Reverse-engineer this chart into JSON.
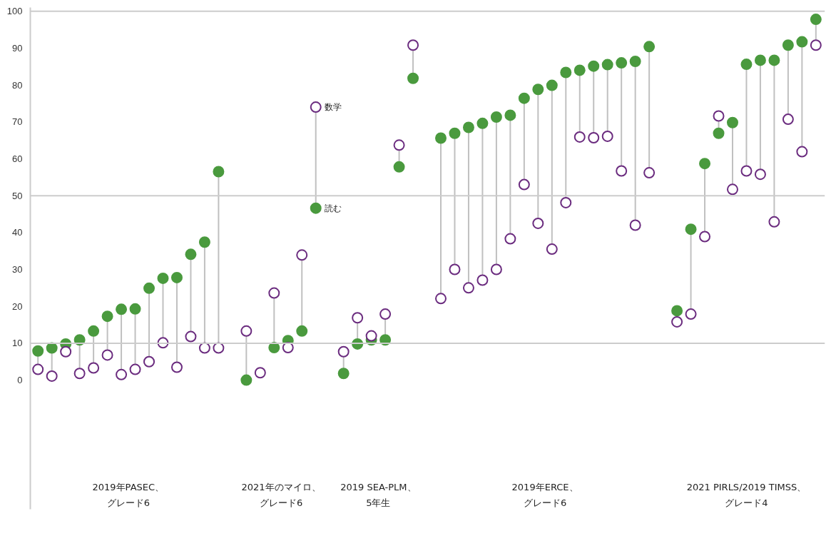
{
  "chart_data": {
    "type": "lollipop",
    "categories": [
      null,
      null,
      null,
      null,
      null,
      null,
      null,
      null,
      null,
      null,
      null,
      null,
      null,
      null,
      null,
      null,
      null,
      null,
      null,
      null,
      null,
      null,
      null,
      null,
      null,
      null,
      null,
      null,
      null,
      null,
      null,
      null,
      null,
      null,
      null,
      null,
      null,
      null,
      null,
      null,
      null,
      null,
      null,
      null,
      null,
      null,
      null,
      null,
      null,
      null,
      null,
      null,
      null,
      null,
      null,
      null,
      null
    ],
    "series": [
      {
        "name": "読む",
        "color": "#4a9a3e",
        "values": [
          7.9,
          8.7,
          9.8,
          10.9,
          13.3,
          17.3,
          19.2,
          19.3,
          24.9,
          27.6,
          27.8,
          34.1,
          37.4,
          56.5,
          null,
          0,
          null,
          8.8,
          10.7,
          13.3,
          46.6,
          null,
          1.8,
          9.8,
          10.9,
          10.9,
          57.8,
          81.8,
          null,
          65.6,
          66.9,
          68.5,
          69.6,
          71.3,
          71.8,
          76.4,
          78.8,
          79.9,
          83.4,
          84.0,
          85.1,
          85.5,
          86.0,
          86.4,
          90.4,
          null,
          18.8,
          40.9,
          58.7,
          66.9,
          69.8,
          85.6,
          86.7,
          86.7,
          90.8,
          91.7,
          97.8
        ]
      },
      {
        "name": "数学",
        "color": "#6b2c7f",
        "values": [
          2.9,
          1.1,
          7.7,
          1.8,
          3.3,
          6.8,
          1.5,
          2.9,
          5.0,
          10.1,
          3.5,
          11.8,
          8.7,
          8.7,
          null,
          13.3,
          2.0,
          23.6,
          8.8,
          33.9,
          74.0,
          null,
          7.7,
          16.9,
          12.0,
          17.9,
          63.7,
          90.8,
          null,
          22.1,
          30.0,
          25.0,
          27.1,
          30.0,
          38.3,
          53.0,
          42.5,
          35.5,
          48.1,
          65.9,
          65.7,
          66.1,
          56.7,
          42.0,
          56.2,
          null,
          15.8,
          17.9,
          38.9,
          71.6,
          51.7,
          56.7,
          55.8,
          42.9,
          70.7,
          61.9,
          90.8
        ]
      }
    ],
    "ylim": [
      -35,
      101
    ],
    "yticks": [
      0,
      10,
      20,
      30,
      40,
      50,
      60,
      70,
      80,
      90,
      100
    ],
    "marker": "circle",
    "ref_lines": [
      {
        "axis": "y",
        "value": 10,
        "color": "#cccccc"
      },
      {
        "axis": "y",
        "value": 50,
        "color": "#cccccc"
      },
      {
        "axis": "y",
        "value": 100,
        "color": "#cccccc"
      }
    ],
    "annotations": [
      "2019年PASEC、",
      "グレード6",
      "2021年のマイロ、",
      "グレード6",
      "2019 SEA-PLM、",
      "5年生",
      "2019年ERCE、",
      "グレード6",
      "2021 PIRLS/2019 TIMSS、",
      "グレード4"
    ]
  }
}
